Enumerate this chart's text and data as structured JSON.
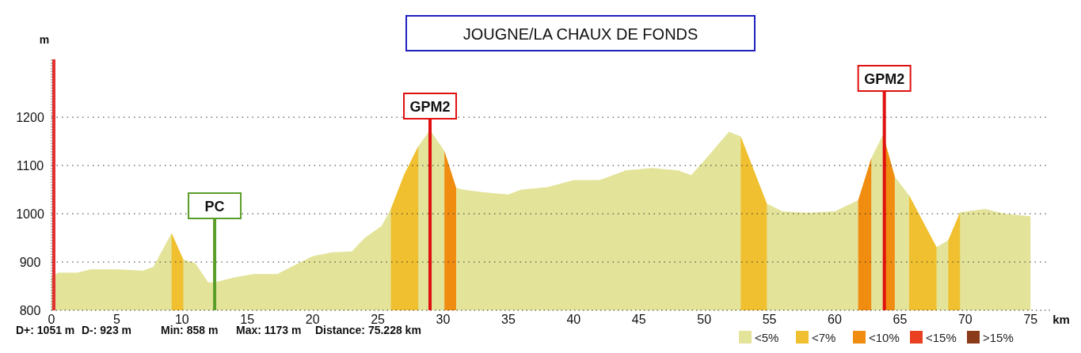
{
  "chart_data": {
    "type": "area",
    "title": "JOUGNE/LA CHAUX DE FONDS",
    "xlabel": "km",
    "ylabel": "m",
    "xlim": [
      0,
      76.5
    ],
    "ylim": [
      800,
      1320
    ],
    "xticks": [
      0,
      5,
      10,
      15,
      20,
      25,
      30,
      35,
      40,
      45,
      50,
      55,
      60,
      65,
      70,
      75
    ],
    "yticks": [
      800,
      900,
      1000,
      1100,
      1200
    ],
    "grid": "y",
    "legend": "bottom right",
    "series": [
      {
        "name": "<5%",
        "color": "#e3e39a",
        "x": [
          0,
          0.5,
          2,
          3,
          5,
          7,
          7.8,
          9.2,
          10.1,
          11,
          12,
          12.5,
          14,
          15.5,
          17.3,
          18.5,
          20,
          21.5,
          23,
          24,
          25.3,
          26,
          27,
          28.1,
          29,
          30.1,
          31,
          31.5,
          33,
          35,
          36,
          38,
          40,
          42,
          44,
          46,
          48,
          49,
          50,
          51.9,
          52.8,
          54.8,
          56,
          58,
          60,
          61.8,
          62.8,
          63.7,
          64.6,
          65.7,
          67.8,
          68.7,
          69.6,
          71.5,
          73,
          75
        ],
        "values": [
          868,
          878,
          878,
          885,
          885,
          882,
          890,
          960,
          905,
          898,
          858,
          858,
          868,
          875,
          875,
          892,
          912,
          920,
          922,
          950,
          975,
          1010,
          1080,
          1140,
          1173,
          1130,
          1054,
          1050,
          1045,
          1040,
          1050,
          1055,
          1070,
          1070,
          1090,
          1095,
          1090,
          1080,
          1110,
          1170,
          1160,
          1021,
          1005,
          1002,
          1005,
          1028,
          1115,
          1164,
          1077,
          1038,
          931,
          945,
          1003,
          1010,
          1000,
          995
        ]
      },
      {
        "name": "<7%",
        "color": "#f0c030",
        "x": [
          9.2,
          10.1,
          null,
          26,
          27,
          28.1,
          null,
          52.8,
          54.8,
          null,
          65.7,
          67.8,
          null,
          68.7,
          69.6
        ],
        "values": [
          960,
          905,
          null,
          1010,
          1080,
          1140,
          null,
          1160,
          1021,
          null,
          1038,
          931,
          null,
          945,
          1003
        ]
      },
      {
        "name": "<10%",
        "color": "#f08c10",
        "x": [
          30.1,
          31,
          null,
          61.8,
          62.8,
          null,
          63.7,
          64.6
        ],
        "values": [
          1130,
          1054,
          null,
          1028,
          1115,
          null,
          1164,
          1077
        ]
      },
      {
        "name": "<15%",
        "color": "#e84020"
      },
      {
        "name": ">15%",
        "color": "#8b3a1a"
      }
    ],
    "ref_lines": [
      {
        "axis": "x",
        "value": 0,
        "color": "#e03030"
      },
      {
        "axis": "x",
        "value": 12.5,
        "label": "PC",
        "color": "#5a9e2a"
      },
      {
        "axis": "x",
        "value": 29,
        "label": "GPM2",
        "color": "#e01010"
      },
      {
        "axis": "x",
        "value": 63.8,
        "label": "GPM2",
        "color": "#e01010"
      }
    ],
    "annotations": [
      "D+: 1051 m",
      "D-: 923 m",
      "Min: 858 m",
      "Max: 1173 m",
      "Distance: 75.228 km"
    ]
  }
}
